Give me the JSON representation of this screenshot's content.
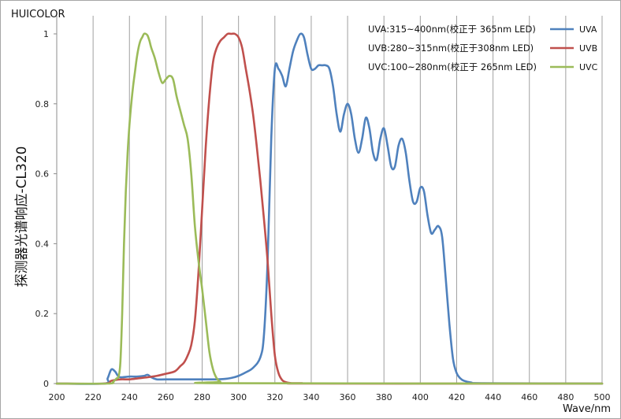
{
  "chart_data": {
    "type": "line",
    "brand": "HUICOLOR",
    "title": "",
    "xlabel": "Wave/nm",
    "ylabel": "探测器光谱响应-CL320",
    "xlim": [
      200,
      500
    ],
    "ylim": [
      0,
      1.05
    ],
    "x_ticks": [
      200,
      220,
      240,
      260,
      280,
      300,
      320,
      340,
      360,
      380,
      400,
      420,
      440,
      460,
      480,
      500
    ],
    "y_ticks": [
      0,
      0.2,
      0.4,
      0.6,
      0.8,
      1
    ],
    "y_tick_labels": [
      "0",
      "0.2",
      "0.4",
      "0.6",
      "0.8",
      "1"
    ],
    "grid": "vertical",
    "legend_position": "top-right",
    "annotations": [
      "UVA:315~400nm(校正于 365nm LED)",
      "UVB:280~315nm(校正于308nm LED)",
      "UVC:100~280nm(校正于 265nm LED)"
    ],
    "series": [
      {
        "name": "UVA",
        "color": "#4f81bd",
        "x": [
          200,
          226,
          228,
          230,
          232,
          234,
          236,
          240,
          244,
          248,
          250,
          252,
          255,
          260,
          270,
          280,
          284,
          288,
          292,
          296,
          300,
          304,
          308,
          312,
          314,
          316,
          318,
          320,
          322,
          324,
          326,
          328,
          330,
          332,
          334,
          336,
          338,
          340,
          342,
          344,
          346,
          348,
          350,
          352,
          354,
          356,
          358,
          360,
          362,
          364,
          366,
          368,
          370,
          372,
          374,
          376,
          378,
          380,
          382,
          384,
          386,
          388,
          390,
          392,
          394,
          396,
          398,
          400,
          402,
          404,
          406,
          408,
          410,
          412,
          414,
          416,
          418,
          420,
          422,
          424,
          428,
          435,
          500
        ],
        "y": [
          0,
          0,
          0.015,
          0.04,
          0.035,
          0.02,
          0.018,
          0.02,
          0.02,
          0.022,
          0.025,
          0.018,
          0.012,
          0.012,
          0.012,
          0.012,
          0.012,
          0.012,
          0.013,
          0.016,
          0.022,
          0.032,
          0.045,
          0.075,
          0.14,
          0.35,
          0.7,
          0.9,
          0.9,
          0.88,
          0.85,
          0.9,
          0.95,
          0.98,
          1.0,
          0.99,
          0.94,
          0.9,
          0.9,
          0.91,
          0.91,
          0.91,
          0.9,
          0.85,
          0.77,
          0.72,
          0.77,
          0.8,
          0.77,
          0.7,
          0.66,
          0.7,
          0.76,
          0.73,
          0.66,
          0.64,
          0.7,
          0.73,
          0.68,
          0.62,
          0.62,
          0.68,
          0.7,
          0.66,
          0.58,
          0.52,
          0.52,
          0.56,
          0.55,
          0.48,
          0.43,
          0.44,
          0.45,
          0.42,
          0.3,
          0.17,
          0.07,
          0.03,
          0.015,
          0.008,
          0.003,
          0.001,
          0
        ]
      },
      {
        "name": "UVB",
        "color": "#c0504d",
        "x": [
          200,
          226,
          230,
          235,
          240,
          245,
          250,
          255,
          260,
          265,
          268,
          270,
          272,
          274,
          276,
          278,
          280,
          282,
          284,
          286,
          288,
          290,
          292,
          294,
          296,
          298,
          300,
          302,
          304,
          306,
          308,
          310,
          312,
          314,
          316,
          318,
          320,
          322,
          324,
          326,
          328,
          330,
          335,
          340,
          500
        ],
        "y": [
          0,
          0,
          0.008,
          0.012,
          0.012,
          0.015,
          0.018,
          0.022,
          0.028,
          0.035,
          0.05,
          0.06,
          0.08,
          0.11,
          0.18,
          0.32,
          0.5,
          0.68,
          0.82,
          0.92,
          0.96,
          0.98,
          0.99,
          1.0,
          1.0,
          1.0,
          0.99,
          0.96,
          0.9,
          0.84,
          0.77,
          0.68,
          0.58,
          0.47,
          0.35,
          0.2,
          0.08,
          0.03,
          0.01,
          0.004,
          0.002,
          0.001,
          0.001,
          0,
          0
        ]
      },
      {
        "name": "UVC",
        "color": "#9bbb59",
        "x": [
          200,
          228,
          231,
          232,
          233,
          234,
          235,
          236,
          237,
          238,
          239,
          240,
          241,
          242,
          243,
          244,
          245,
          246,
          247,
          248,
          249,
          250,
          251,
          252,
          254,
          256,
          258,
          260,
          262,
          264,
          266,
          268,
          270,
          272,
          274,
          276,
          278,
          280,
          282,
          284,
          286,
          288,
          290,
          292,
          500
        ],
        "y": [
          0,
          0,
          0.005,
          0.01,
          0.015,
          0.02,
          0.06,
          0.2,
          0.4,
          0.55,
          0.66,
          0.74,
          0.8,
          0.85,
          0.89,
          0.93,
          0.96,
          0.98,
          0.99,
          1.0,
          1.0,
          0.995,
          0.98,
          0.96,
          0.93,
          0.89,
          0.86,
          0.87,
          0.88,
          0.87,
          0.82,
          0.78,
          0.74,
          0.7,
          0.6,
          0.45,
          0.35,
          0.27,
          0.18,
          0.09,
          0.04,
          0.015,
          0.005,
          0.001,
          0
        ]
      }
    ]
  }
}
